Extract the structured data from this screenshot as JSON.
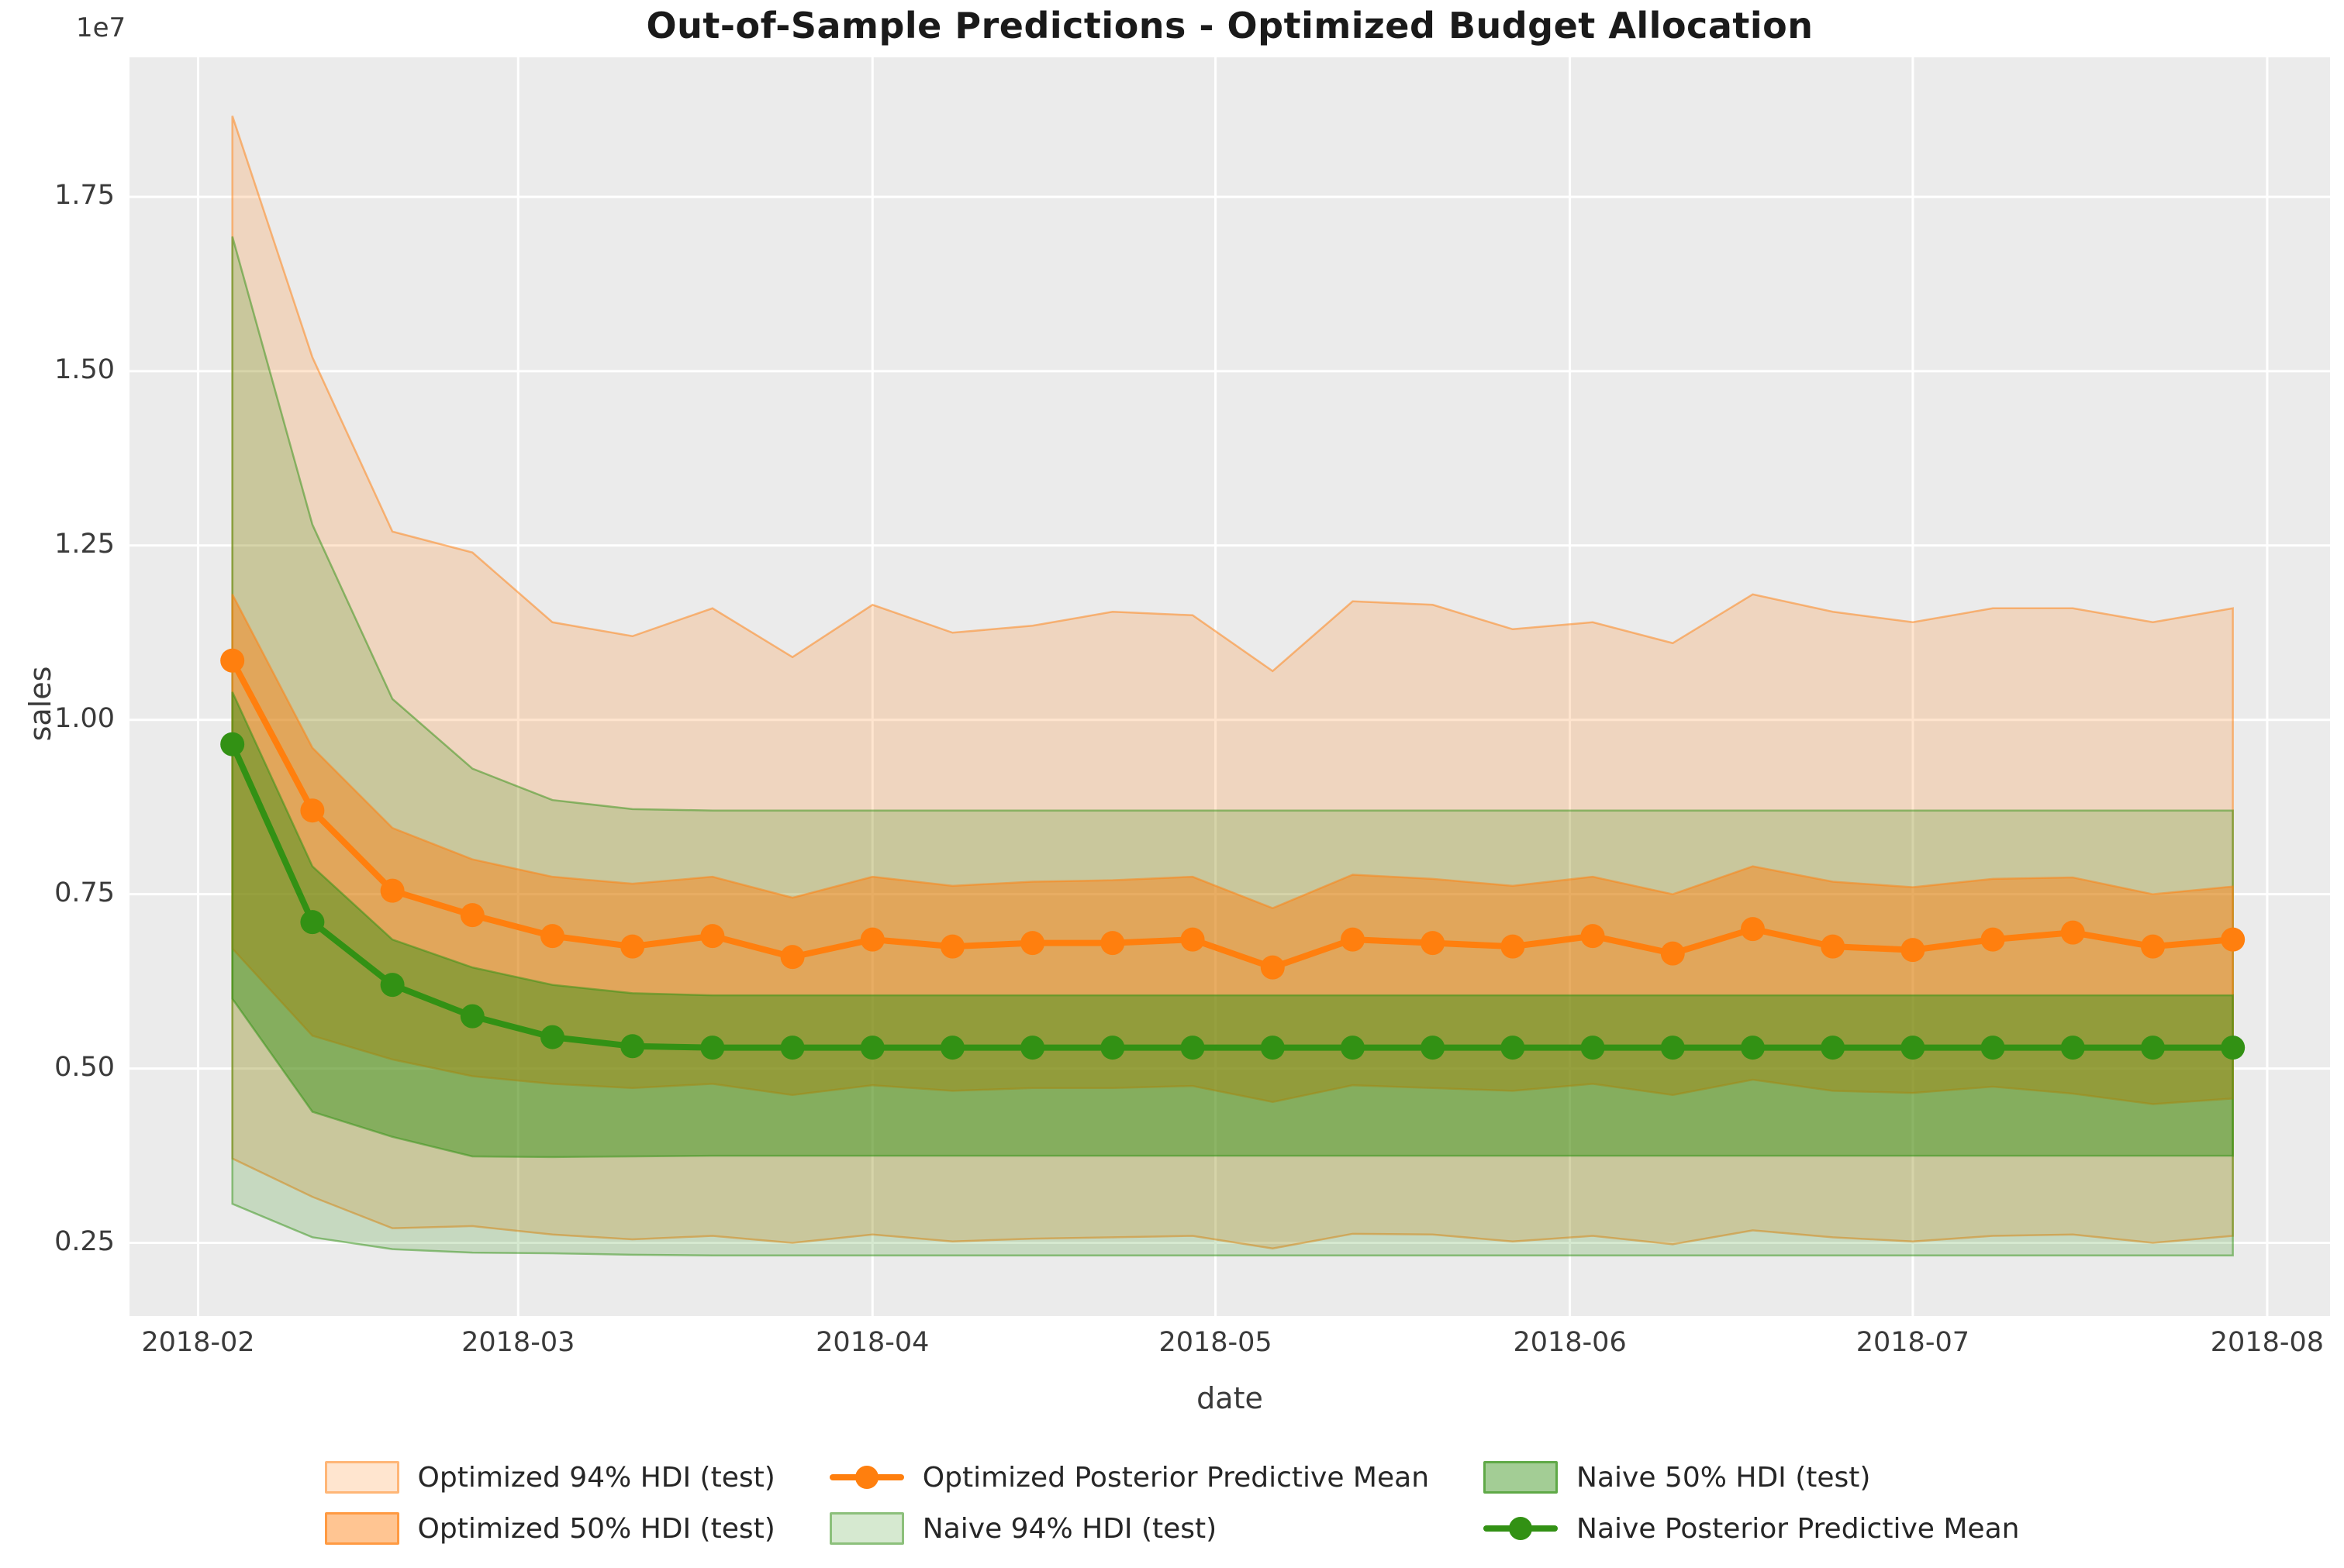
{
  "figure": {
    "title": "Out-of-Sample Predictions - Optimized Budget Allocation",
    "offset_text": "1e7"
  },
  "axes": {
    "xlabel": "date",
    "ylabel": "sales",
    "x_ticks": [
      {
        "label": "2018-02",
        "day": 0
      },
      {
        "label": "2018-03",
        "day": 28
      },
      {
        "label": "2018-04",
        "day": 59
      },
      {
        "label": "2018-05",
        "day": 89
      },
      {
        "label": "2018-06",
        "day": 120
      },
      {
        "label": "2018-07",
        "day": 150
      },
      {
        "label": "2018-08",
        "day": 181
      }
    ],
    "y_ticks": [
      {
        "label": "0.25",
        "value": 0.25
      },
      {
        "label": "0.50",
        "value": 0.5
      },
      {
        "label": "0.75",
        "value": 0.75
      },
      {
        "label": "1.00",
        "value": 1.0
      },
      {
        "label": "1.25",
        "value": 1.25
      },
      {
        "label": "1.50",
        "value": 1.5
      },
      {
        "label": "1.75",
        "value": 1.75
      }
    ]
  },
  "colors": {
    "optimized": "#ff7f0e",
    "naive": "#329114",
    "plot_background": "#ebebeb",
    "grid": "#ffffff",
    "text": "#262626"
  },
  "legend": {
    "items": [
      {
        "label": "Optimized 94% HDI (test)"
      },
      {
        "label": "Optimized 50% HDI (test)"
      },
      {
        "label": "Optimized Posterior Predictive Mean"
      },
      {
        "label": "Naive 94% HDI (test)"
      },
      {
        "label": "Naive 50% HDI (test)"
      },
      {
        "label": "Naive Posterior Predictive Mean"
      }
    ]
  },
  "chart_data": {
    "type": "line",
    "title": "Out-of-Sample Predictions - Optimized Budget Allocation",
    "xlabel": "date",
    "ylabel": "sales",
    "unit_multiplier": "1e7",
    "grid": true,
    "legend_position": "bottom",
    "x": [
      "2018-02-04",
      "2018-02-11",
      "2018-02-18",
      "2018-02-25",
      "2018-03-04",
      "2018-03-11",
      "2018-03-18",
      "2018-03-25",
      "2018-04-01",
      "2018-04-08",
      "2018-04-15",
      "2018-04-22",
      "2018-04-29",
      "2018-05-06",
      "2018-05-13",
      "2018-05-20",
      "2018-05-27",
      "2018-06-03",
      "2018-06-10",
      "2018-06-17",
      "2018-06-24",
      "2018-07-01",
      "2018-07-08",
      "2018-07-15",
      "2018-07-22",
      "2018-07-29"
    ],
    "point_days": [
      3,
      10,
      17,
      24,
      31,
      38,
      45,
      52,
      59,
      66,
      73,
      80,
      87,
      94,
      101,
      108,
      115,
      122,
      129,
      136,
      143,
      150,
      157,
      164,
      171,
      178
    ],
    "xlim_days": [
      -6,
      186.5
    ],
    "ylim": [
      0.145,
      1.95
    ],
    "values_unit": "1e7 sales",
    "series": [
      {
        "name": "Optimized Posterior Predictive Mean",
        "color": "#ff7f0e",
        "values": [
          1.085,
          0.87,
          0.755,
          0.72,
          0.69,
          0.675,
          0.69,
          0.66,
          0.685,
          0.675,
          0.68,
          0.68,
          0.685,
          0.645,
          0.685,
          0.68,
          0.675,
          0.69,
          0.665,
          0.7,
          0.675,
          0.67,
          0.685,
          0.695,
          0.675,
          0.685
        ]
      },
      {
        "name": "Naive Posterior Predictive Mean",
        "color": "#329114",
        "values": [
          0.965,
          0.71,
          0.62,
          0.575,
          0.545,
          0.532,
          0.53,
          0.53,
          0.53,
          0.53,
          0.53,
          0.53,
          0.53,
          0.53,
          0.53,
          0.53,
          0.53,
          0.53,
          0.53,
          0.53,
          0.53,
          0.53,
          0.53,
          0.53,
          0.53,
          0.53
        ]
      }
    ],
    "bands": [
      {
        "name": "Optimized 94% HDI (test)",
        "color": "#ff7f0e",
        "alpha": 0.2,
        "upper": [
          1.866,
          1.52,
          1.27,
          1.24,
          1.14,
          1.12,
          1.16,
          1.09,
          1.165,
          1.125,
          1.135,
          1.155,
          1.15,
          1.07,
          1.17,
          1.165,
          1.13,
          1.14,
          1.11,
          1.18,
          1.155,
          1.14,
          1.16,
          1.16,
          1.14,
          1.16
        ],
        "lower": [
          0.371,
          0.316,
          0.271,
          0.274,
          0.262,
          0.255,
          0.26,
          0.25,
          0.262,
          0.252,
          0.256,
          0.258,
          0.26,
          0.242,
          0.263,
          0.262,
          0.252,
          0.26,
          0.248,
          0.268,
          0.258,
          0.252,
          0.26,
          0.262,
          0.25,
          0.26
        ]
      },
      {
        "name": "Optimized 50% HDI (test)",
        "color": "#ff7f0e",
        "alpha": 0.45,
        "upper": [
          1.18,
          0.96,
          0.845,
          0.8,
          0.775,
          0.765,
          0.775,
          0.745,
          0.775,
          0.762,
          0.768,
          0.77,
          0.775,
          0.73,
          0.778,
          0.772,
          0.762,
          0.775,
          0.75,
          0.79,
          0.768,
          0.76,
          0.772,
          0.774,
          0.75,
          0.761
        ],
        "lower": [
          0.672,
          0.547,
          0.513,
          0.489,
          0.478,
          0.472,
          0.478,
          0.462,
          0.476,
          0.468,
          0.472,
          0.472,
          0.475,
          0.452,
          0.476,
          0.472,
          0.468,
          0.478,
          0.462,
          0.484,
          0.468,
          0.465,
          0.474,
          0.464,
          0.449,
          0.457
        ]
      },
      {
        "name": "Naive 94% HDI (test)",
        "color": "#329114",
        "alpha": 0.2,
        "upper": [
          1.693,
          1.28,
          1.03,
          0.93,
          0.885,
          0.872,
          0.87,
          0.87,
          0.87,
          0.87,
          0.87,
          0.87,
          0.87,
          0.87,
          0.87,
          0.87,
          0.87,
          0.87,
          0.87,
          0.87,
          0.87,
          0.87,
          0.87,
          0.87,
          0.87,
          0.87
        ],
        "lower": [
          0.306,
          0.258,
          0.241,
          0.236,
          0.235,
          0.233,
          0.232,
          0.232,
          0.232,
          0.232,
          0.232,
          0.232,
          0.232,
          0.232,
          0.232,
          0.232,
          0.232,
          0.232,
          0.232,
          0.232,
          0.232,
          0.232,
          0.232,
          0.232,
          0.232,
          0.232
        ]
      },
      {
        "name": "Naive 50% HDI (test)",
        "color": "#329114",
        "alpha": 0.45,
        "upper": [
          1.04,
          0.79,
          0.685,
          0.645,
          0.62,
          0.608,
          0.605,
          0.605,
          0.605,
          0.605,
          0.605,
          0.605,
          0.605,
          0.605,
          0.605,
          0.605,
          0.605,
          0.605,
          0.605,
          0.605,
          0.605,
          0.605,
          0.605,
          0.605,
          0.605,
          0.605
        ],
        "lower": [
          0.6,
          0.438,
          0.402,
          0.374,
          0.373,
          0.374,
          0.375,
          0.375,
          0.375,
          0.375,
          0.375,
          0.375,
          0.375,
          0.375,
          0.375,
          0.375,
          0.375,
          0.375,
          0.375,
          0.375,
          0.375,
          0.375,
          0.375,
          0.375,
          0.375,
          0.375
        ]
      }
    ]
  }
}
